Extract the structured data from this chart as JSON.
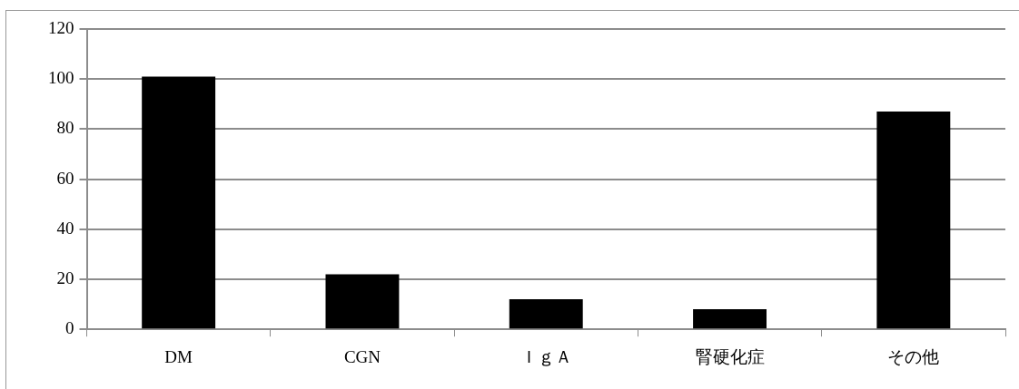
{
  "chart_data": {
    "type": "bar",
    "categories": [
      "DM",
      "CGN",
      "ＩｇＡ",
      "腎硬化症",
      "その他"
    ],
    "values": [
      101,
      22,
      12,
      8,
      87
    ],
    "color": "#000000",
    "ylim": [
      0,
      120
    ],
    "yticks": [
      0,
      20,
      40,
      60,
      80,
      100,
      120
    ],
    "grid": "y",
    "legend": false
  }
}
